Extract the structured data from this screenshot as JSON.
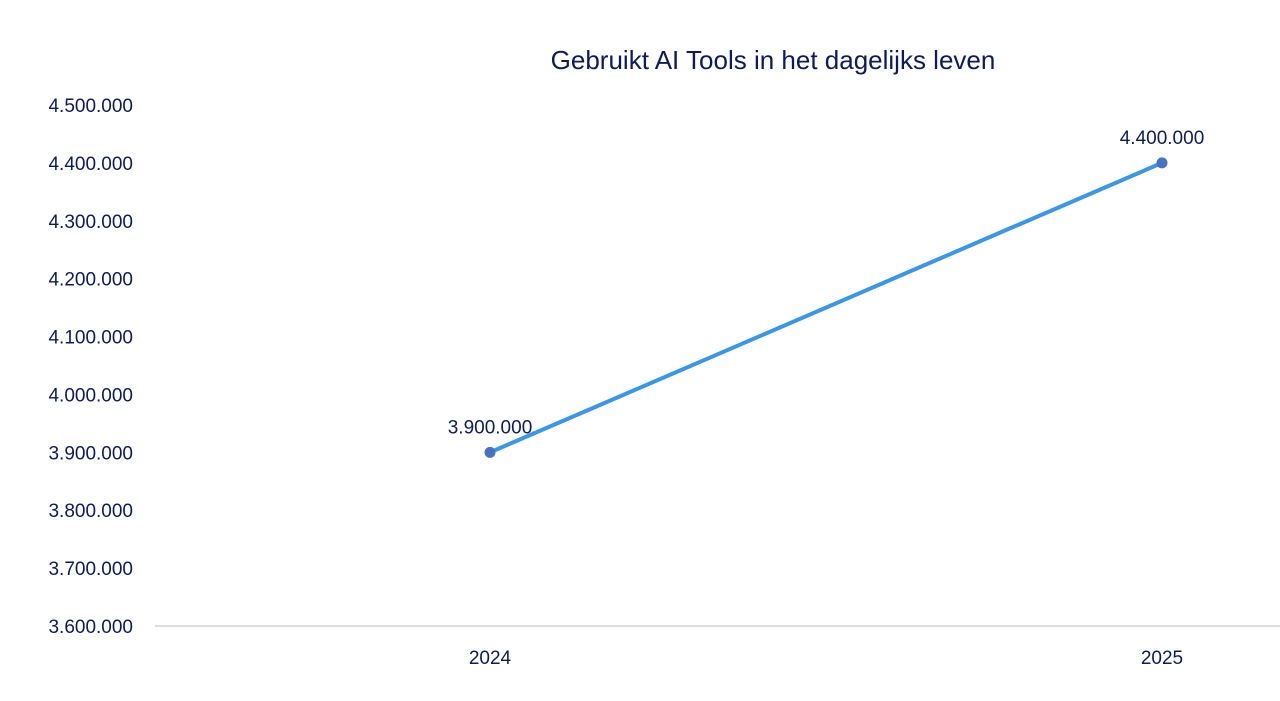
{
  "chart_data": {
    "type": "line",
    "title": "Gebruikt AI Tools in het dagelijks leven",
    "xlabel": "",
    "ylabel": "",
    "categories": [
      "2024",
      "2025"
    ],
    "series": [
      {
        "values": [
          3900000,
          4400000
        ]
      }
    ],
    "data_labels": [
      "3.900.000",
      "4.400.000"
    ],
    "ylim": [
      3600000,
      4500000
    ],
    "y_ticks": [
      3600000,
      3700000,
      3800000,
      3900000,
      4000000,
      4100000,
      4200000,
      4300000,
      4400000,
      4500000
    ],
    "y_tick_labels": [
      "3.600.000",
      "3.700.000",
      "3.800.000",
      "3.900.000",
      "4.000.000",
      "4.100.000",
      "4.200.000",
      "4.300.000",
      "4.400.000",
      "4.500.000"
    ],
    "grid": false,
    "legend": "none",
    "colors": {
      "line": "#3a96e6",
      "marker": "#4472c4",
      "axis": "#d0d4dc",
      "text": "#0d1b5c"
    }
  }
}
